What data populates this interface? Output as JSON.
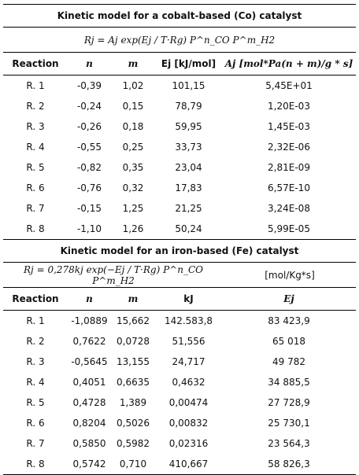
{
  "sections": [
    {
      "title": "Kinetic model for a cobalt-based (Co) catalyst",
      "formula": "Rj = Aj exp(Ej / T·Rg) P^n_CO P^m_H2",
      "header": [
        "Reaction",
        "n",
        "m",
        "Ej [kJ/mol]",
        "Aj [mol*Pa(n + m)/g * s]"
      ],
      "rows": [
        [
          "R. 1",
          "-0,39",
          "1,02",
          "101,15",
          "5,45E+01"
        ],
        [
          "R. 2",
          "-0,24",
          "0,15",
          "78,79",
          "1,20E-03"
        ],
        [
          "R. 3",
          "-0,26",
          "0,18",
          "59,95",
          "1,45E-03"
        ],
        [
          "R. 4",
          "-0,55",
          "0,25",
          "33,73",
          "2,32E-06"
        ],
        [
          "R. 5",
          "-0,82",
          "0,35",
          "23,04",
          "2,81E-09"
        ],
        [
          "R. 6",
          "-0,76",
          "0,32",
          "17,83",
          "6,57E-10"
        ],
        [
          "R. 7",
          "-0,15",
          "1,25",
          "21,25",
          "3,24E-08"
        ],
        [
          "R. 8",
          "-1,10",
          "1,26",
          "50,24",
          "5,99E-05"
        ]
      ]
    },
    {
      "title": "Kinetic model for an iron-based (Fe) catalyst",
      "formula": "Rj = 0,278kj exp(−Ej / T·Rg) P^n_CO P^m_H2",
      "unit": "[mol/Kg*s]",
      "header": [
        "Reaction",
        "n",
        "m",
        "kJ",
        "Ej"
      ],
      "rows": [
        [
          "R. 1",
          "-1,0889",
          "15,662",
          "142.583,8",
          "83 423,9"
        ],
        [
          "R. 2",
          "0,7622",
          "0,0728",
          "51,556",
          "65 018"
        ],
        [
          "R. 3",
          "-0,5645",
          "13,155",
          "24,717",
          "49 782"
        ],
        [
          "R. 4",
          "0,4051",
          "0,6635",
          "0,4632",
          "34 885,5"
        ],
        [
          "R. 5",
          "0,4728",
          "1,389",
          "0,00474",
          "27 728,9"
        ],
        [
          "R. 6",
          "0,8204",
          "0,5026",
          "0,00832",
          "25 730,1"
        ],
        [
          "R. 7",
          "0,5850",
          "0,5982",
          "0,02316",
          "23 564,3"
        ],
        [
          "R. 8",
          "0,5742",
          "0,710",
          "410,667",
          "58 826,3"
        ]
      ]
    }
  ]
}
